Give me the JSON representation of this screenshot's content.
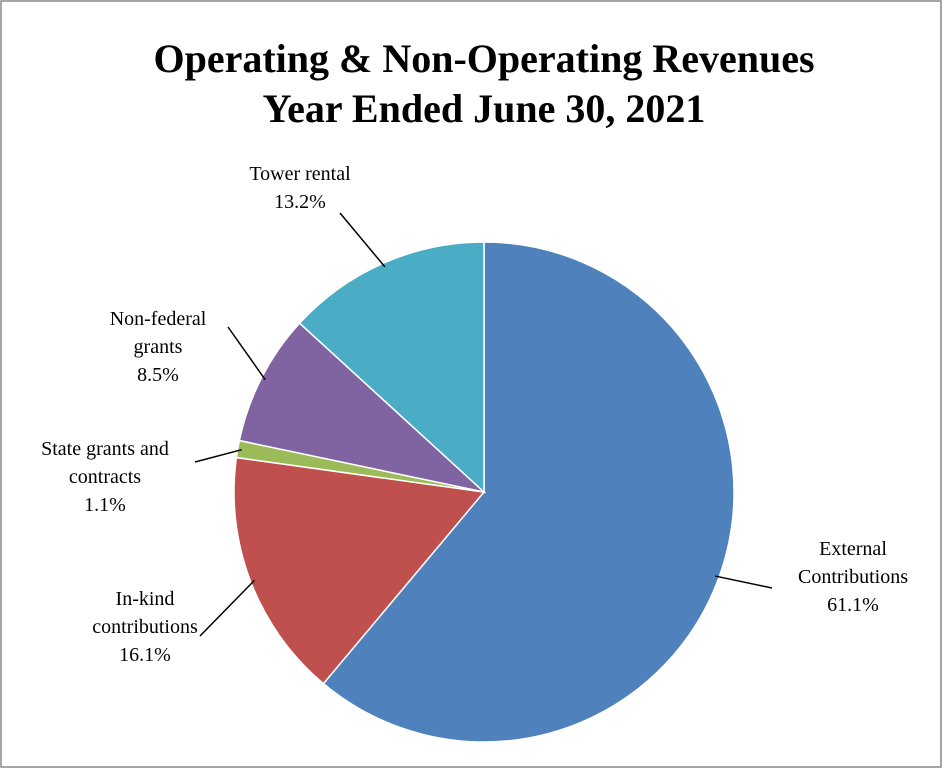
{
  "chart_data": {
    "type": "pie",
    "title": "Operating & Non-Operating Revenues",
    "subtitle": "Year Ended June 30, 2021",
    "categories": [
      "External Contributions",
      "In-kind contributions",
      "State grants and contracts",
      "Non-federal grants",
      "Tower rental"
    ],
    "values": [
      61.1,
      16.1,
      1.1,
      8.5,
      13.2
    ],
    "value_labels": [
      "61.1%",
      "16.1%",
      "1.1%",
      "8.5%",
      "13.2%"
    ],
    "colors": [
      "#4f81bd",
      "#c0504d",
      "#9bbb59",
      "#8064a2",
      "#4bacc6"
    ]
  }
}
